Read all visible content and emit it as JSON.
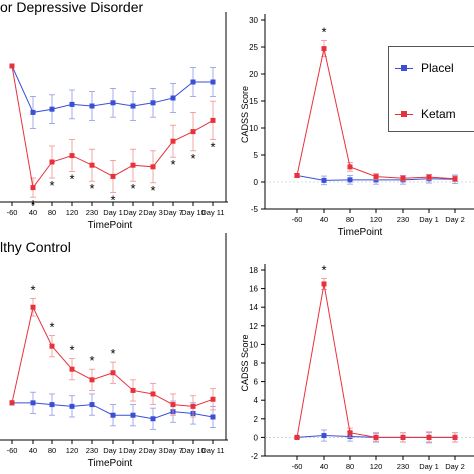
{
  "colors": {
    "placebo": "#3a4fd6",
    "ketamine": "#e8323b",
    "placebo_err": "#8d98e8",
    "ketamine_err": "#f09090"
  },
  "legend": [
    {
      "key": "placebo",
      "label": "Placel"
    },
    {
      "key": "ketamine",
      "label": "Ketam"
    }
  ],
  "chart_data": [
    {
      "id": "mdd-main",
      "type": "line",
      "title": "or Depressive Disorder",
      "xlabel": "TimePoint",
      "ylabel": "",
      "categories": [
        "-60",
        "40",
        "80",
        "120",
        "230",
        "Day 1",
        "Day 2",
        "Day 3",
        "Day 7",
        "Day 10",
        "Day 11"
      ],
      "ylim": [
        0,
        100
      ],
      "series": [
        {
          "key": "placebo",
          "values": [
            85,
            56,
            58,
            61,
            60,
            62,
            60,
            62,
            65,
            75,
            75
          ],
          "err": [
            0,
            10,
            9,
            9,
            9,
            9,
            9,
            9,
            9,
            9,
            9
          ]
        },
        {
          "key": "ketamine",
          "values": [
            85,
            9,
            25,
            29,
            23,
            16,
            23,
            22,
            38,
            44,
            51
          ],
          "err": [
            0,
            6,
            10,
            10,
            10,
            10,
            10,
            10,
            10,
            12,
            12
          ]
        }
      ],
      "annotations": [
        "*",
        "*",
        "*",
        "*",
        "*",
        "*",
        "*",
        "*",
        "*",
        "*"
      ]
    },
    {
      "id": "mdd-cadss",
      "type": "line",
      "title": "",
      "xlabel": "TimePoint",
      "ylabel": "CADSS Score",
      "categories": [
        "-60",
        "40",
        "80",
        "120",
        "230",
        "Day 1",
        "Day 2"
      ],
      "yticks": [
        -5,
        0,
        5,
        10,
        15,
        20,
        25,
        30
      ],
      "ylim": [
        -5,
        30
      ],
      "series": [
        {
          "key": "placebo",
          "values": [
            1.2,
            0.3,
            0.4,
            0.4,
            0.4,
            0.6,
            0.5
          ],
          "err": [
            0.3,
            0.8,
            0.8,
            0.8,
            0.8,
            0.8,
            0.8
          ]
        },
        {
          "key": "ketamine",
          "values": [
            1.2,
            24.7,
            2.8,
            1.0,
            0.7,
            0.9,
            0.6
          ],
          "err": [
            0.3,
            1.5,
            0.8,
            0.6,
            0.5,
            0.5,
            0.5
          ]
        }
      ],
      "annotations": [
        "*"
      ]
    },
    {
      "id": "hc-main",
      "type": "line",
      "title": "lthy Control",
      "xlabel": "TimePoint",
      "ylabel": "",
      "categories": [
        "-60",
        "40",
        "80",
        "120",
        "230",
        "Day 1",
        "Day 2",
        "Day 3",
        "Day 7",
        "Day 10",
        "Day 11"
      ],
      "ylim": [
        0,
        100
      ],
      "series": [
        {
          "key": "placebo",
          "values": [
            21,
            21,
            20,
            19,
            20,
            14,
            14,
            12,
            16,
            15,
            13
          ],
          "err": [
            0,
            6,
            6,
            6,
            6,
            6,
            6,
            6,
            6,
            6,
            6
          ]
        },
        {
          "key": "ketamine",
          "values": [
            21,
            75,
            53,
            40,
            34,
            38,
            28,
            26,
            20,
            19,
            23
          ],
          "err": [
            0,
            5,
            6,
            6,
            6,
            6,
            6,
            6,
            6,
            6,
            6
          ]
        }
      ],
      "annotations": [
        "*",
        "*",
        "*",
        "*",
        "*"
      ]
    },
    {
      "id": "hc-cadss",
      "type": "line",
      "title": "",
      "xlabel": "TimePoint",
      "ylabel": "CADSS Score",
      "categories": [
        "-60",
        "40",
        "80",
        "120",
        "230",
        "Day 1",
        "Day 2"
      ],
      "yticks": [
        -2,
        0,
        2,
        4,
        6,
        8,
        10,
        12,
        14,
        16,
        18
      ],
      "ylim": [
        -2,
        18
      ],
      "series": [
        {
          "key": "placebo",
          "values": [
            0,
            0.2,
            0.1,
            0,
            0,
            0,
            0
          ],
          "err": [
            0.1,
            0.6,
            0.5,
            0.5,
            0.5,
            0.5,
            0.5
          ]
        },
        {
          "key": "ketamine",
          "values": [
            0,
            16.5,
            0.5,
            0,
            0,
            0,
            0
          ],
          "err": [
            0.1,
            0.6,
            0.5,
            0.4,
            0.5,
            0.6,
            0.5
          ]
        }
      ],
      "annotations": [
        "*"
      ]
    }
  ]
}
